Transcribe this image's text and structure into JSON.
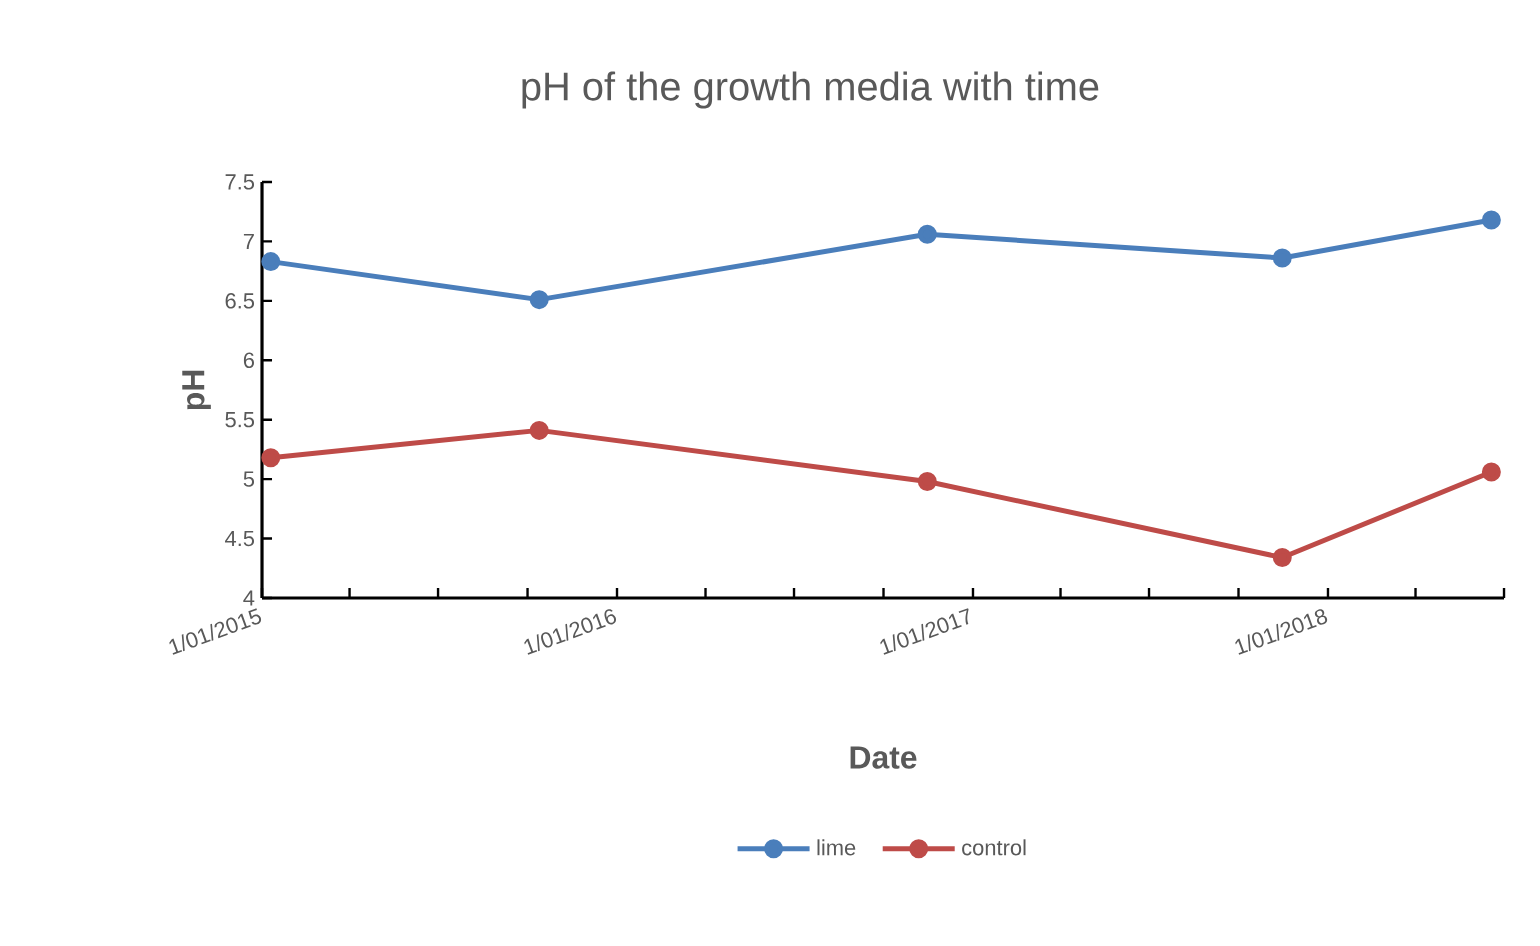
{
  "chart_data": {
    "type": "line",
    "title": "pH of the growth media with time",
    "xlabel": "Date",
    "ylabel": "pH",
    "x": [
      "2015-01-10",
      "2015-10-13",
      "2016-11-15",
      "2017-11-15",
      "2018-06-18"
    ],
    "series": [
      {
        "name": "lime",
        "color": "#4a7ebb",
        "values": [
          6.83,
          6.51,
          7.06,
          6.86,
          7.18
        ]
      },
      {
        "name": "control",
        "color": "#be4b48",
        "values": [
          5.18,
          5.41,
          4.98,
          4.34,
          5.06
        ]
      }
    ],
    "xlim": [
      "2015-01-01",
      "2018-07-01"
    ],
    "xticks": [
      {
        "value": "2015-01-01",
        "label": "1/01/2015"
      },
      {
        "value": "2015-04-01",
        "label": null
      },
      {
        "value": "2015-07-01",
        "label": null
      },
      {
        "value": "2015-10-01",
        "label": null
      },
      {
        "value": "2016-01-01",
        "label": "1/01/2016"
      },
      {
        "value": "2016-04-01",
        "label": null
      },
      {
        "value": "2016-07-01",
        "label": null
      },
      {
        "value": "2016-10-01",
        "label": null
      },
      {
        "value": "2017-01-01",
        "label": "1/01/2017"
      },
      {
        "value": "2017-04-01",
        "label": null
      },
      {
        "value": "2017-07-01",
        "label": null
      },
      {
        "value": "2017-10-01",
        "label": null
      },
      {
        "value": "2018-01-01",
        "label": "1/01/2018"
      },
      {
        "value": "2018-04-01",
        "label": null
      },
      {
        "value": "2018-07-01",
        "label": null
      }
    ],
    "ylim": [
      4,
      7.5
    ],
    "yticks": [
      4,
      4.5,
      5,
      5.5,
      6,
      6.5,
      7,
      7.5
    ],
    "grid": false,
    "legend": "bottom",
    "marker": "circle",
    "line_style": "solid"
  }
}
